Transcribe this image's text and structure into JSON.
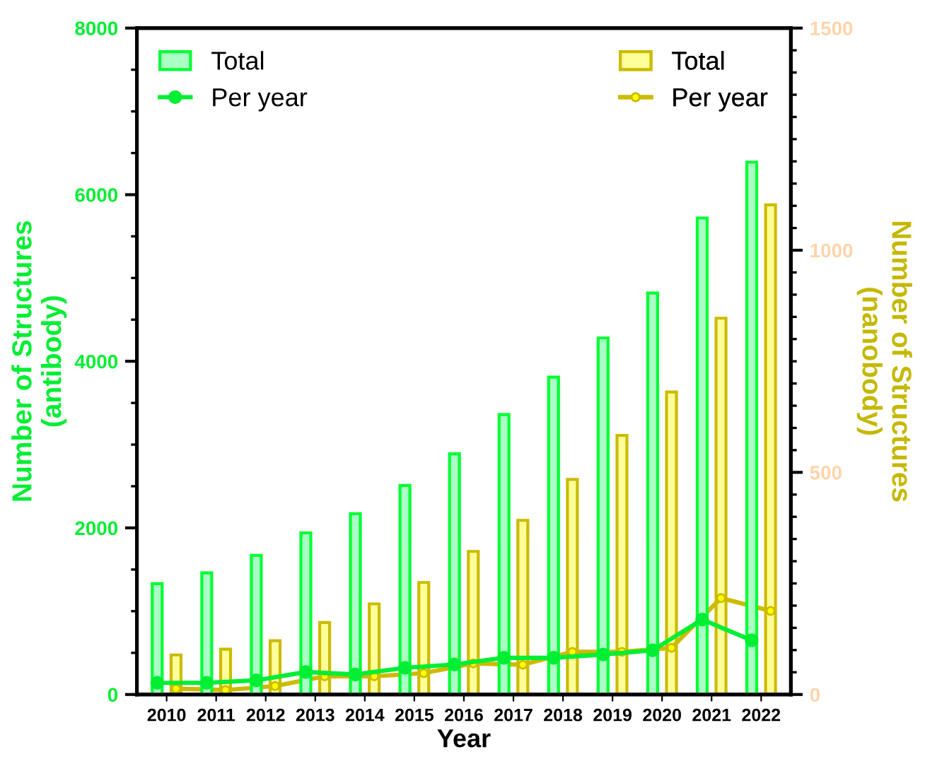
{
  "chart_data": {
    "type": "bar",
    "xlabel": "Year",
    "ylabel": "Number of Structures\n(antibody)",
    "y2label": "Number of Structures\n(nanobody)",
    "categories": [
      "2010",
      "2011",
      "2012",
      "2013",
      "2014",
      "2015",
      "2016",
      "2017",
      "2018",
      "2019",
      "2020",
      "2021",
      "2022"
    ],
    "series": [
      {
        "name": "Total",
        "color": "#00ff33",
        "values": [
          1330,
          1460,
          1670,
          1940,
          2170,
          2510,
          2890,
          3360,
          3810,
          4280,
          4820,
          5720,
          6390
        ]
      },
      {
        "name": "Per year",
        "type": "line",
        "color": "#00ee33",
        "values": [
          140,
          140,
          170,
          270,
          240,
          320,
          360,
          440,
          440,
          480,
          530,
          900,
          650
        ]
      },
      {
        "name": "Total",
        "axis": "y2",
        "color": "#ccbb00",
        "values": [
          89,
          102,
          121,
          162,
          204,
          252,
          322,
          392,
          484,
          583,
          681,
          847,
          1102
        ]
      },
      {
        "name": "Per year",
        "type": "line",
        "axis": "y2",
        "color": "#ccbb00",
        "values": [
          13,
          10,
          19,
          41,
          41,
          48,
          70,
          67,
          96,
          96,
          105,
          217,
          188
        ]
      }
    ],
    "ylim": [
      0,
      8000
    ],
    "yticks": [
      0,
      2000,
      4000,
      6000,
      8000
    ],
    "y2lim": [
      0,
      1500
    ],
    "y2ticks": [
      0,
      500,
      1000,
      1500
    ],
    "marker": "circle",
    "legend": "top",
    "grid": false
  }
}
